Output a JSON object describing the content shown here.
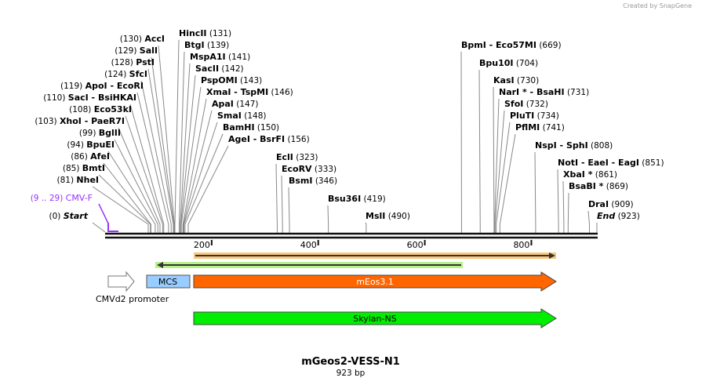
{
  "brand": "Created by SnapGene",
  "title": "mGeos2-VESS-N1",
  "length_label": "923 bp",
  "length_bp": 923,
  "ticks": [
    {
      "bp": 200,
      "label": "200"
    },
    {
      "bp": 400,
      "label": "400"
    },
    {
      "bp": 600,
      "label": "600"
    },
    {
      "bp": 800,
      "label": "800"
    }
  ],
  "start": {
    "name": "Start",
    "pos": "(0)",
    "bp": 0
  },
  "end": {
    "name": "End",
    "pos": "(923)",
    "bp": 923
  },
  "primer": {
    "name": "CMV-F",
    "pos": "(9 .. 29)",
    "bp_start": 9,
    "bp_end": 29,
    "color": "#9933ff"
  },
  "sites_left": [
    {
      "name": "AccI",
      "pos": "(130)",
      "bp": 130
    },
    {
      "name": "SalI",
      "pos": "(129)",
      "bp": 129
    },
    {
      "name": "PstI",
      "pos": "(128)",
      "bp": 128
    },
    {
      "name": "SfcI",
      "pos": "(124)",
      "bp": 124
    },
    {
      "name": "ApoI  - EcoRI",
      "pos": "(119)",
      "bp": 119
    },
    {
      "name": "SacI  - BsiHKAI",
      "pos": "(110)",
      "bp": 110
    },
    {
      "name": "Eco53kI",
      "pos": "(108)",
      "bp": 108
    },
    {
      "name": "XhoI  - PaeR7I",
      "pos": "(103)",
      "bp": 103
    },
    {
      "name": "BglII",
      "pos": "(99)",
      "bp": 99
    },
    {
      "name": "BpuEI",
      "pos": "(94)",
      "bp": 94
    },
    {
      "name": "AfeI",
      "pos": "(86)",
      "bp": 86
    },
    {
      "name": "BmtI",
      "pos": "(85)",
      "bp": 85
    },
    {
      "name": "NheI",
      "pos": "(81)",
      "bp": 81
    }
  ],
  "sites_right": [
    {
      "name": "HincII",
      "pos": "(131)",
      "bp": 131
    },
    {
      "name": "BtgI",
      "pos": "(139)",
      "bp": 139
    },
    {
      "name": "MspA1I",
      "pos": "(141)",
      "bp": 141
    },
    {
      "name": "SacII",
      "pos": "(142)",
      "bp": 142
    },
    {
      "name": "PspOMI",
      "pos": "(143)",
      "bp": 143
    },
    {
      "name": "XmaI  - TspMI",
      "pos": "(146)",
      "bp": 146
    },
    {
      "name": "ApaI",
      "pos": "(147)",
      "bp": 147
    },
    {
      "name": "SmaI",
      "pos": "(148)",
      "bp": 148
    },
    {
      "name": "BamHI",
      "pos": "(150)",
      "bp": 150
    },
    {
      "name": "AgeI  - BsrFI",
      "pos": "(156)",
      "bp": 156
    },
    {
      "name": "EclI",
      "pos": "(323)",
      "bp": 323
    },
    {
      "name": "EcoRV",
      "pos": "(333)",
      "bp": 333
    },
    {
      "name": "BsmI",
      "pos": "(346)",
      "bp": 346
    },
    {
      "name": "Bsu36I",
      "pos": "(419)",
      "bp": 419
    },
    {
      "name": "MslI",
      "pos": "(490)",
      "bp": 490
    },
    {
      "name": "BpmI  - Eco57MI",
      "pos": "(669)",
      "bp": 669
    },
    {
      "name": "Bpu10I",
      "pos": "(704)",
      "bp": 704
    },
    {
      "name": "KasI",
      "pos": "(730)",
      "bp": 730
    },
    {
      "name": "NarI * - BsaHI",
      "pos": "(731)",
      "bp": 731
    },
    {
      "name": "SfoI",
      "pos": "(732)",
      "bp": 732
    },
    {
      "name": "PluTI",
      "pos": "(734)",
      "bp": 734
    },
    {
      "name": "PflMI",
      "pos": "(741)",
      "bp": 741
    },
    {
      "name": "NspI  - SphI",
      "pos": "(808)",
      "bp": 808
    },
    {
      "name": "NotI  - EaeI  - EagI",
      "pos": "(851)",
      "bp": 851
    },
    {
      "name": "XbaI *",
      "pos": "(861)",
      "bp": 861
    },
    {
      "name": "BsaBI *",
      "pos": "(869)",
      "bp": 869
    },
    {
      "name": "DraI",
      "pos": "(909)",
      "bp": 909
    }
  ],
  "features": {
    "promoter": {
      "name": "CMVd2 promoter",
      "color": "#ffffff"
    },
    "mcs": {
      "name": "MCS",
      "color": "#99ccff"
    },
    "meos": {
      "name": "mEos3.1",
      "color": "#ff6600"
    },
    "skylan": {
      "name": "Skylan-NS",
      "color": "#00ee00"
    },
    "orf_forward_color": "#f8c77a",
    "orf_reverse_color": "#b8f08a"
  }
}
